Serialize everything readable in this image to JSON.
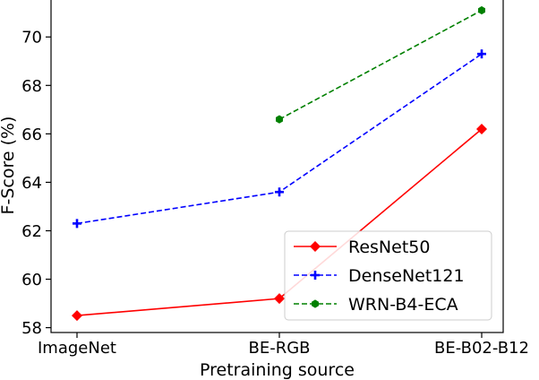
{
  "chart_data": {
    "type": "line",
    "xlabel": "Pretraining source",
    "ylabel": "F-Score (%)",
    "categories": [
      "ImageNet",
      "BE-RGB",
      "BE-B02-B12"
    ],
    "ylim": [
      57.8,
      71.6
    ],
    "yticks": [
      58,
      60,
      62,
      64,
      66,
      68,
      70
    ],
    "grid": false,
    "legend_position": "lower-right",
    "series": [
      {
        "name": "ResNet50",
        "values": [
          58.5,
          59.2,
          66.2
        ],
        "color": "#ff0000",
        "linestyle": "solid",
        "marker": "diamond"
      },
      {
        "name": "DenseNet121",
        "values": [
          62.3,
          63.6,
          69.3
        ],
        "color": "#0000ff",
        "linestyle": "dashed",
        "marker": "plus"
      },
      {
        "name": "WRN-B4-ECA",
        "values": [
          null,
          66.6,
          71.1
        ],
        "color": "#008000",
        "linestyle": "dashed",
        "marker": "hexagon"
      }
    ]
  }
}
